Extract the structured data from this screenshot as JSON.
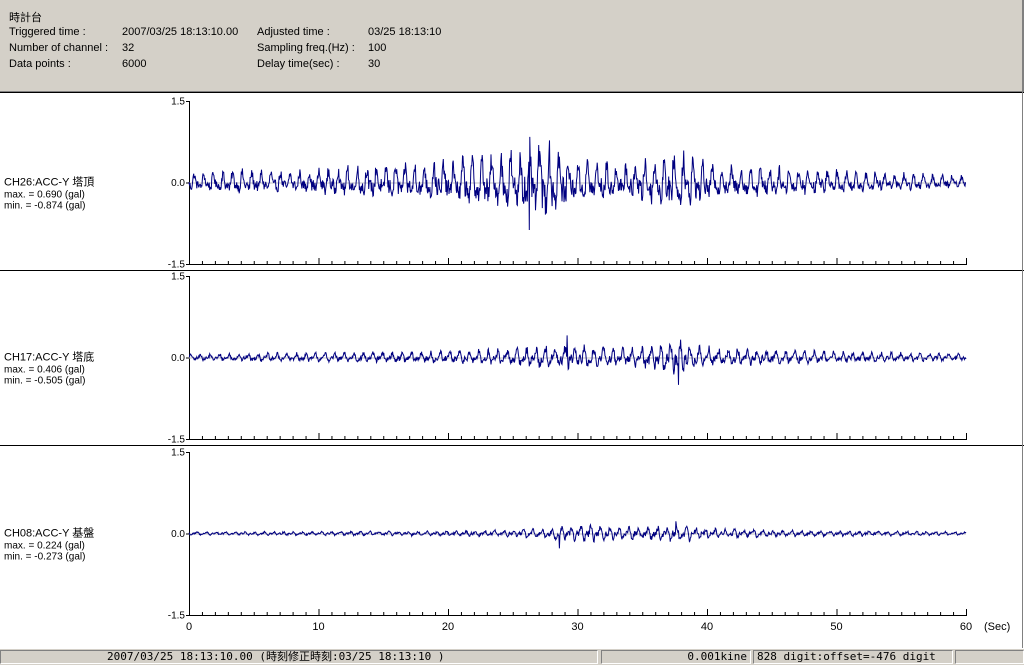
{
  "header": {
    "title": "時計台",
    "fields": [
      {
        "label": "Triggered time :",
        "value": "2007/03/25 18:13:10.00"
      },
      {
        "label": "Adjusted time :",
        "value": "03/25 18:13:10"
      },
      {
        "label": "Number of channel :",
        "value": "32"
      },
      {
        "label": "Sampling freq.(Hz) :",
        "value": "100"
      },
      {
        "label": "Data points :",
        "value": "6000"
      },
      {
        "label": "Delay time(sec) :",
        "value": "30"
      }
    ]
  },
  "status": {
    "time": "2007/03/25 18:13:10.00  (時刻修正時刻:03/25 18:13:10  )",
    "unit": "0.001kine",
    "digit": "828 digit:offset=-476 digit"
  },
  "chart_data": {
    "type": "line",
    "line_color": "#000080",
    "x_unit": "(Sec)",
    "xlim": [
      0,
      60
    ],
    "x_ticks": [
      "0",
      "10",
      "20",
      "30",
      "40",
      "50",
      "60"
    ],
    "y_ticks": [
      "1.5",
      "0.0",
      "-1.5"
    ],
    "ylim": [
      -1.5,
      1.5
    ],
    "series": [
      {
        "name": "CH26:ACC-Y 塔頂",
        "max_text": "max. = 0.690 (gal)",
        "min_text": "min. = -0.874 (gal)",
        "max": 0.69,
        "min": -0.874,
        "envelope": [
          [
            0,
            0.15
          ],
          [
            4,
            0.2
          ],
          [
            8,
            0.18
          ],
          [
            12,
            0.25
          ],
          [
            14,
            0.3
          ],
          [
            18,
            0.32
          ],
          [
            21,
            0.4
          ],
          [
            24,
            0.45
          ],
          [
            25.5,
            0.55
          ],
          [
            27,
            0.7
          ],
          [
            28.5,
            0.55
          ],
          [
            30,
            0.38
          ],
          [
            33,
            0.32
          ],
          [
            36,
            0.4
          ],
          [
            37.8,
            0.55
          ],
          [
            40,
            0.3
          ],
          [
            45,
            0.25
          ],
          [
            50,
            0.2
          ],
          [
            55,
            0.15
          ],
          [
            60,
            0.1
          ]
        ],
        "peaks": [
          {
            "x": 27.0,
            "y": 0.69
          },
          {
            "x": 26.3,
            "y": -0.874
          }
        ]
      },
      {
        "name": "CH17:ACC-Y 塔底",
        "max_text": "max. = 0.406 (gal)",
        "min_text": "min. = -0.505 (gal)",
        "max": 0.406,
        "min": -0.505,
        "envelope": [
          [
            0,
            0.06
          ],
          [
            5,
            0.07
          ],
          [
            10,
            0.08
          ],
          [
            15,
            0.09
          ],
          [
            20,
            0.11
          ],
          [
            25,
            0.14
          ],
          [
            28,
            0.2
          ],
          [
            30,
            0.2
          ],
          [
            33,
            0.16
          ],
          [
            35,
            0.18
          ],
          [
            37.5,
            0.3
          ],
          [
            40,
            0.17
          ],
          [
            45,
            0.13
          ],
          [
            50,
            0.1
          ],
          [
            55,
            0.08
          ],
          [
            60,
            0.06
          ]
        ],
        "peaks": [
          {
            "x": 29.2,
            "y": 0.406
          },
          {
            "x": 37.8,
            "y": -0.505
          }
        ]
      },
      {
        "name": "CH08:ACC-Y 基盤",
        "max_text": "max. = 0.224 (gal)",
        "min_text": "min. = -0.273 (gal)",
        "max": 0.224,
        "min": -0.273,
        "envelope": [
          [
            0,
            0.03
          ],
          [
            10,
            0.035
          ],
          [
            20,
            0.045
          ],
          [
            25,
            0.06
          ],
          [
            28,
            0.1
          ],
          [
            31,
            0.14
          ],
          [
            33,
            0.1
          ],
          [
            36,
            0.12
          ],
          [
            38,
            0.14
          ],
          [
            41,
            0.08
          ],
          [
            45,
            0.06
          ],
          [
            50,
            0.05
          ],
          [
            55,
            0.04
          ],
          [
            60,
            0.03
          ]
        ],
        "peaks": [
          {
            "x": 37.6,
            "y": 0.224
          },
          {
            "x": 28.6,
            "y": -0.273
          }
        ]
      }
    ]
  }
}
